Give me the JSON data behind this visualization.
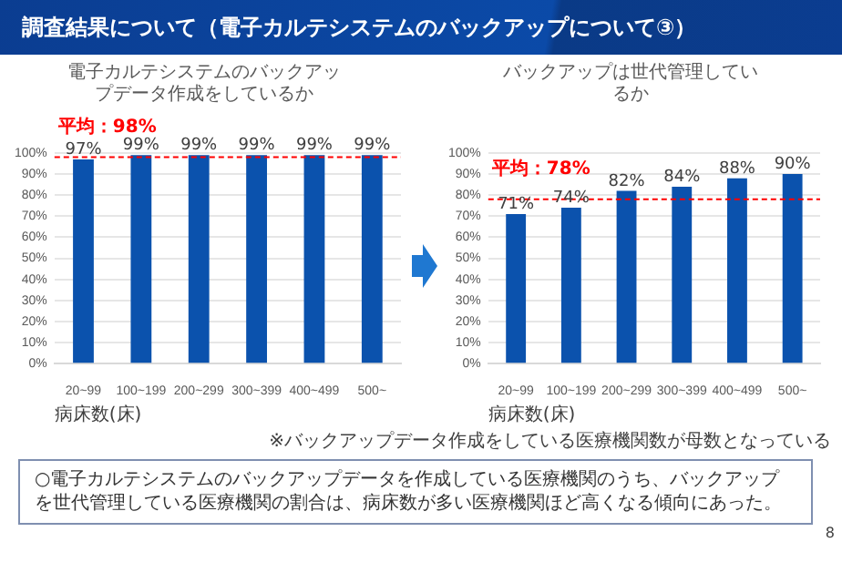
{
  "chart_data": [
    {
      "type": "other",
      "title": "調査結果について（電子カルテシステムのバックアップについて③）"
    },
    {
      "type": "bar",
      "title": "電子カルテシステムのバックアップデータ作成をしているか",
      "xlabel": "病床数(床)",
      "categories": [
        "20~99",
        "100~199",
        "200~299",
        "300~399",
        "400~499",
        "500~"
      ],
      "values": [
        97,
        99,
        99,
        99,
        99,
        99
      ],
      "value_labels": [
        "97%",
        "99%",
        "99%",
        "99%",
        "99%",
        "99%"
      ],
      "color": "#0b52ad",
      "ylim": [
        0,
        100
      ],
      "yticks": [
        {
          "value": 0,
          "label": "0%"
        },
        {
          "value": 10,
          "label": "10%"
        },
        {
          "value": 20,
          "label": "20%"
        },
        {
          "value": 30,
          "label": "30%"
        },
        {
          "value": 40,
          "label": "40%"
        },
        {
          "value": 50,
          "label": "50%"
        },
        {
          "value": 60,
          "label": "60%"
        },
        {
          "value": 70,
          "label": "70%"
        },
        {
          "value": 80,
          "label": "80%"
        },
        {
          "value": 90,
          "label": "90%"
        },
        {
          "value": 100,
          "label": "100%"
        }
      ],
      "grid": "y",
      "ref_lines": [
        {
          "axis": "y",
          "value": 98,
          "label": "平均：98%",
          "color": "#ff0000",
          "line_style": "dashed"
        }
      ]
    },
    {
      "type": "bar",
      "title": "バックアップは世代管理しているか",
      "xlabel": "病床数(床)",
      "categories": [
        "20~99",
        "100~199",
        "200~299",
        "300~399",
        "400~499",
        "500~"
      ],
      "values": [
        71,
        74,
        82,
        84,
        88,
        90
      ],
      "value_labels": [
        "71%",
        "74%",
        "82%",
        "84%",
        "88%",
        "90%"
      ],
      "color": "#0b52ad",
      "ylim": [
        0,
        100
      ],
      "yticks": [
        {
          "value": 0,
          "label": "0%"
        },
        {
          "value": 10,
          "label": "10%"
        },
        {
          "value": 20,
          "label": "20%"
        },
        {
          "value": 30,
          "label": "30%"
        },
        {
          "value": 40,
          "label": "40%"
        },
        {
          "value": 50,
          "label": "50%"
        },
        {
          "value": 60,
          "label": "60%"
        },
        {
          "value": 70,
          "label": "70%"
        },
        {
          "value": 80,
          "label": "80%"
        },
        {
          "value": 90,
          "label": "90%"
        },
        {
          "value": 100,
          "label": "100%"
        }
      ],
      "grid": "y",
      "ref_lines": [
        {
          "axis": "y",
          "value": 78,
          "label": "平均：78%",
          "color": "#ff0000",
          "line_style": "dashed"
        }
      ],
      "annotations": [
        "※バックアップデータ作成をしている医療機関数が母数となっている"
      ]
    },
    {
      "type": "other",
      "annotations": [
        "○電子カルテシステムのバックアップデータを作成している医療機関のうち、バックアップを世代管理している医療機関の割合は、病床数が多い医療機関ほど高くなる傾向にあった。",
        "8"
      ]
    }
  ]
}
